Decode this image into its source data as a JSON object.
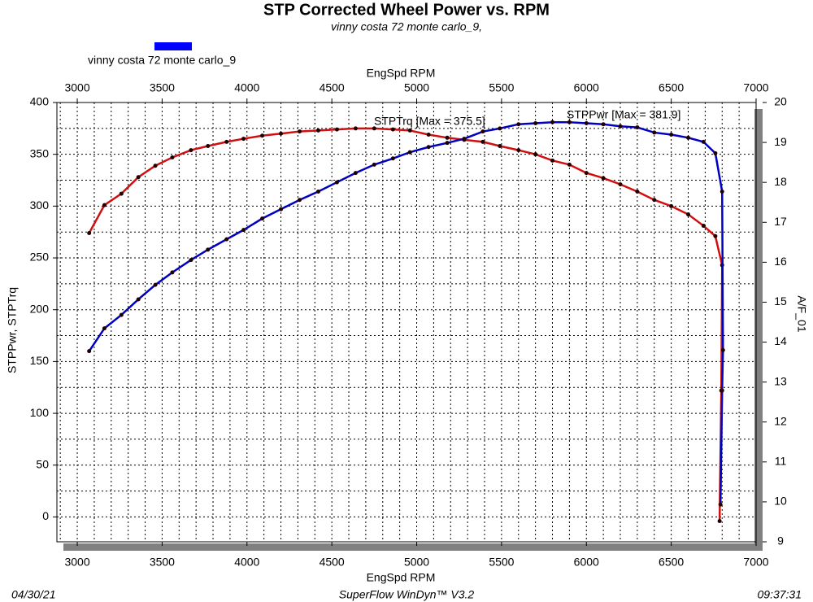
{
  "chart_data": {
    "type": "line",
    "title": "STP Corrected Wheel Power vs. RPM",
    "subtitle": "vinny costa 72 monte carlo_9,",
    "legend": {
      "label": "vinny costa 72 monte carlo_9",
      "color": "#0000ff"
    },
    "xlabel": "EngSpd  RPM",
    "ylabel": "STPPwr, STPTrq",
    "y2label": "A/F_01",
    "xlim": [
      2880,
      7000
    ],
    "xticks": [
      3000,
      3500,
      4000,
      4500,
      5000,
      5500,
      6000,
      6500,
      7000
    ],
    "ylim": [
      -24,
      400
    ],
    "yticks": [
      0,
      50,
      100,
      150,
      200,
      250,
      300,
      350,
      400
    ],
    "y2lim": [
      9,
      20
    ],
    "y2ticks": [
      9,
      10,
      11,
      12,
      13,
      14,
      15,
      16,
      17,
      18,
      19,
      20
    ],
    "xgrid": [
      2900,
      3000,
      3100,
      3200,
      3300,
      3400,
      3500,
      3600,
      3700,
      3800,
      3900,
      4000,
      4100,
      4200,
      4300,
      4400,
      4500,
      4600,
      4700,
      4800,
      4900,
      5000,
      5100,
      5200,
      5300,
      5400,
      5500,
      5600,
      5700,
      5800,
      5900,
      6000,
      6100,
      6200,
      6300,
      6400,
      6500,
      6600,
      6700,
      6800,
      6900
    ],
    "ygrid": [
      0,
      25,
      50,
      75,
      100,
      125,
      150,
      175,
      200,
      225,
      250,
      275,
      300,
      325,
      350,
      375
    ],
    "series": [
      {
        "color": "#d01010",
        "x": [
          3070,
          3160,
          3260,
          3360,
          3460,
          3560,
          3670,
          3770,
          3880,
          3980,
          4090,
          4200,
          4310,
          4420,
          4530,
          4640,
          4750,
          4860,
          4960,
          5070,
          5180,
          5280,
          5390,
          5490,
          5600,
          5700,
          5800,
          5900,
          6000,
          6100,
          6200,
          6300,
          6400,
          6500,
          6600,
          6690,
          6760,
          6800,
          6795,
          6785
        ],
        "values": [
          274,
          301,
          312,
          328,
          339,
          347,
          354,
          358,
          362,
          365,
          368,
          370,
          372,
          373,
          374,
          375,
          375,
          374,
          373,
          369,
          366,
          364,
          362,
          358,
          354,
          350,
          344,
          340,
          332,
          327,
          321,
          314,
          306,
          300,
          292,
          281,
          271,
          243,
          122,
          -4
        ]
      },
      {
        "color": "#0000c0",
        "x": [
          3070,
          3160,
          3260,
          3360,
          3460,
          3560,
          3670,
          3770,
          3880,
          3980,
          4090,
          4200,
          4310,
          4420,
          4530,
          4640,
          4750,
          4860,
          4960,
          5070,
          5180,
          5280,
          5390,
          5490,
          5600,
          5700,
          5800,
          5900,
          6000,
          6100,
          6200,
          6300,
          6400,
          6500,
          6600,
          6690,
          6760,
          6800,
          6805,
          6800,
          6790
        ],
        "values": [
          160,
          182,
          195,
          210,
          224,
          236,
          248,
          258,
          268,
          277,
          288,
          297,
          306,
          314,
          323,
          332,
          340,
          346,
          352,
          357,
          361,
          365,
          372,
          375,
          379,
          380,
          381,
          381,
          380,
          379,
          377,
          376,
          371,
          369,
          366,
          362,
          351,
          314,
          161,
          122,
          12
        ]
      }
    ],
    "annotations": [
      "STPTrq [Max = 375.5]",
      "STPPwr [Max = 381.9]"
    ],
    "footer": {
      "date": "04/30/21",
      "software": "SuperFlow WinDyn™ V3.2",
      "time": "09:37:31"
    }
  }
}
